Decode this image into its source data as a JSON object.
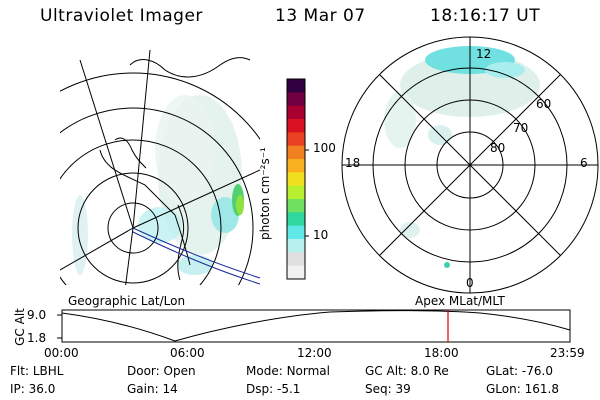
{
  "header": {
    "title": "Ultraviolet Imager",
    "date": "13 Mar 07",
    "time": "18:16:17 UT"
  },
  "colorbar": {
    "label": "photon cm⁻²s⁻¹",
    "ticks": [
      "100",
      "10"
    ],
    "colors": [
      "#f2f2f2",
      "#e0e0e0",
      "#b8f0f0",
      "#60e8e8",
      "#30d8a0",
      "#70e060",
      "#b8f030",
      "#f0e020",
      "#f8b020",
      "#f08020",
      "#e84020",
      "#d81020",
      "#a80030",
      "#700040",
      "#300040"
    ]
  },
  "polar_plot": {
    "mlt_labels": {
      "top": "12",
      "bottom": "0",
      "left": "18",
      "right": "6"
    },
    "lat_labels": [
      "60",
      "70",
      "80"
    ]
  },
  "map_labels": {
    "left": "Geographic Lat/Lon",
    "right": "Apex MLat/MLT"
  },
  "altitude_plot": {
    "axis_label": "GC Alt",
    "y_ticks": [
      "9.0",
      "1.8"
    ],
    "x_ticks": [
      "00:00",
      "06:00",
      "12:00",
      "18:00",
      "23:59"
    ],
    "marker_color": "#e00000"
  },
  "info": {
    "filter": {
      "label": "Flt:",
      "value": "LBHL"
    },
    "ip": {
      "label": "IP:",
      "value": "36.0"
    },
    "door": {
      "label": "Door:",
      "value": "Open"
    },
    "gain": {
      "label": "Gain:",
      "value": "14"
    },
    "mode": {
      "label": "Mode:",
      "value": "Normal"
    },
    "dsp": {
      "label": "Dsp:",
      "value": "-5.1"
    },
    "gc_alt": {
      "label": "GC Alt:",
      "value": "8.0 Re"
    },
    "seq": {
      "label": "Seq:",
      "value": "39"
    },
    "glat": {
      "label": "GLat:",
      "value": "-76.0"
    },
    "glon": {
      "label": "GLon:",
      "value": "161.8"
    }
  }
}
